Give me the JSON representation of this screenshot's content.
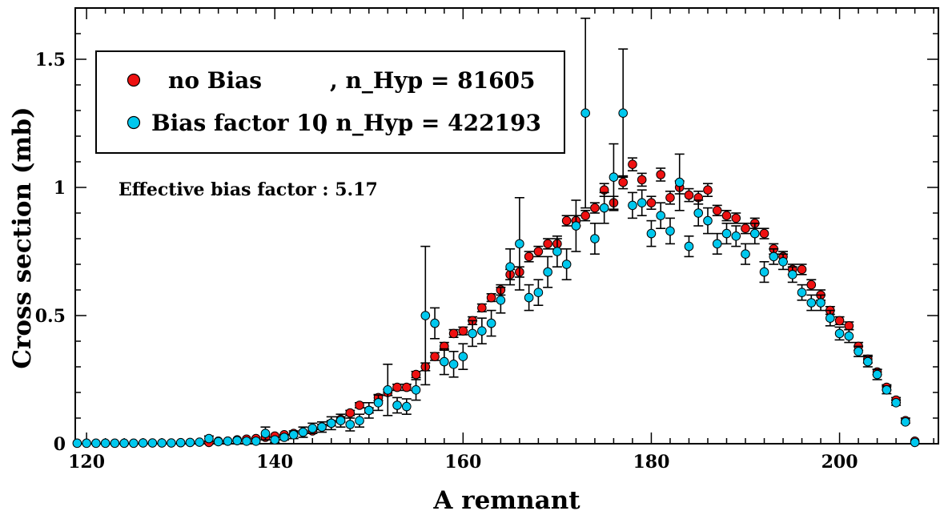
{
  "chart_data": {
    "type": "scatter",
    "title": "",
    "xlabel": "A remnant",
    "ylabel": "Cross section (mb)",
    "xlim": [
      118.8,
      210.5
    ],
    "ylim": [
      0,
      1.7
    ],
    "x_ticks": [
      120,
      140,
      160,
      180,
      200
    ],
    "x_tick_labels": [
      "120",
      "140",
      "160",
      "180",
      "200"
    ],
    "y_ticks": [
      0,
      0.5,
      1,
      1.5
    ],
    "y_tick_labels": [
      "0",
      "0.5",
      "1",
      "1.5"
    ],
    "annotation": "Effective bias factor : 5.17",
    "legend_position": "top-left",
    "series": [
      {
        "name": "no Bias",
        "legend_label": "no Bias",
        "legend_suffix": ", n_Hyp = 81605",
        "color": "#ee1111",
        "x": [
          133,
          134,
          135,
          136,
          137,
          138,
          139,
          140,
          141,
          142,
          143,
          144,
          145,
          146,
          147,
          148,
          149,
          150,
          151,
          152,
          153,
          154,
          155,
          156,
          157,
          158,
          159,
          160,
          161,
          162,
          163,
          164,
          165,
          166,
          167,
          168,
          169,
          170,
          171,
          172,
          173,
          174,
          175,
          176,
          177,
          178,
          179,
          180,
          181,
          182,
          183,
          184,
          185,
          186,
          187,
          188,
          189,
          190,
          191,
          192,
          193,
          194,
          195,
          196,
          197,
          198,
          199,
          200,
          201,
          202,
          203,
          204,
          205,
          206,
          207,
          208
        ],
        "y": [
          0.005,
          0.01,
          0.01,
          0.015,
          0.018,
          0.02,
          0.025,
          0.03,
          0.035,
          0.04,
          0.045,
          0.05,
          0.065,
          0.08,
          0.095,
          0.12,
          0.15,
          0.13,
          0.18,
          0.2,
          0.22,
          0.22,
          0.27,
          0.3,
          0.34,
          0.38,
          0.43,
          0.44,
          0.48,
          0.53,
          0.57,
          0.6,
          0.66,
          0.67,
          0.73,
          0.75,
          0.78,
          0.78,
          0.87,
          0.87,
          0.89,
          0.92,
          0.99,
          0.94,
          1.02,
          1.09,
          1.03,
          0.94,
          1.05,
          0.96,
          1.0,
          0.97,
          0.96,
          0.99,
          0.91,
          0.89,
          0.88,
          0.84,
          0.86,
          0.82,
          0.76,
          0.73,
          0.68,
          0.68,
          0.62,
          0.58,
          0.52,
          0.48,
          0.46,
          0.38,
          0.33,
          0.28,
          0.22,
          0.17,
          0.09,
          0.01
        ],
        "err": [
          0.005,
          0.005,
          0.005,
          0.005,
          0.005,
          0.005,
          0.005,
          0.005,
          0.008,
          0.008,
          0.008,
          0.01,
          0.01,
          0.01,
          0.01,
          0.01,
          0.01,
          0.01,
          0.012,
          0.012,
          0.012,
          0.012,
          0.012,
          0.015,
          0.015,
          0.015,
          0.015,
          0.015,
          0.015,
          0.015,
          0.015,
          0.02,
          0.02,
          0.02,
          0.02,
          0.02,
          0.02,
          0.02,
          0.02,
          0.02,
          0.02,
          0.02,
          0.025,
          0.025,
          0.025,
          0.025,
          0.025,
          0.025,
          0.025,
          0.025,
          0.025,
          0.025,
          0.025,
          0.025,
          0.02,
          0.02,
          0.02,
          0.02,
          0.02,
          0.02,
          0.02,
          0.02,
          0.02,
          0.02,
          0.02,
          0.02,
          0.015,
          0.015,
          0.015,
          0.015,
          0.015,
          0.01,
          0.01,
          0.01,
          0.01,
          0.005
        ]
      },
      {
        "name": "Bias factor 10",
        "legend_label": "Bias factor 10",
        "legend_suffix": ", n_Hyp = 422193",
        "color": "#00c8ee",
        "x": [
          119,
          120,
          121,
          122,
          123,
          124,
          125,
          126,
          127,
          128,
          129,
          130,
          131,
          132,
          133,
          134,
          135,
          136,
          137,
          138,
          139,
          140,
          141,
          142,
          143,
          144,
          145,
          146,
          147,
          148,
          149,
          150,
          151,
          152,
          153,
          154,
          155,
          156,
          157,
          158,
          159,
          160,
          161,
          162,
          163,
          164,
          165,
          166,
          167,
          168,
          169,
          170,
          171,
          172,
          173,
          174,
          175,
          176,
          177,
          178,
          179,
          180,
          181,
          182,
          183,
          184,
          185,
          186,
          187,
          188,
          189,
          190,
          191,
          192,
          193,
          194,
          195,
          196,
          197,
          198,
          199,
          200,
          201,
          202,
          203,
          204,
          205,
          206,
          207,
          208
        ],
        "y": [
          0.002,
          0.002,
          0.002,
          0.002,
          0.002,
          0.002,
          0.002,
          0.003,
          0.003,
          0.003,
          0.003,
          0.004,
          0.005,
          0.006,
          0.02,
          0.008,
          0.01,
          0.012,
          0.01,
          0.01,
          0.04,
          0.015,
          0.025,
          0.035,
          0.045,
          0.06,
          0.065,
          0.08,
          0.09,
          0.075,
          0.09,
          0.13,
          0.16,
          0.21,
          0.15,
          0.145,
          0.21,
          0.5,
          0.47,
          0.32,
          0.31,
          0.34,
          0.43,
          0.44,
          0.47,
          0.56,
          0.69,
          0.78,
          0.57,
          0.59,
          0.67,
          0.75,
          0.7,
          0.85,
          1.29,
          0.8,
          0.92,
          1.04,
          1.29,
          0.93,
          0.94,
          0.82,
          0.89,
          0.83,
          1.02,
          0.77,
          0.9,
          0.87,
          0.78,
          0.82,
          0.81,
          0.74,
          0.82,
          0.67,
          0.73,
          0.71,
          0.66,
          0.59,
          0.55,
          0.55,
          0.49,
          0.43,
          0.42,
          0.36,
          0.32,
          0.27,
          0.21,
          0.16,
          0.085,
          0.005
        ],
        "err": [
          0.002,
          0.002,
          0.002,
          0.002,
          0.002,
          0.002,
          0.002,
          0.002,
          0.002,
          0.002,
          0.002,
          0.003,
          0.003,
          0.003,
          0.01,
          0.005,
          0.005,
          0.005,
          0.005,
          0.005,
          0.025,
          0.01,
          0.01,
          0.015,
          0.02,
          0.02,
          0.02,
          0.025,
          0.025,
          0.025,
          0.025,
          0.03,
          0.03,
          0.1,
          0.03,
          0.03,
          0.04,
          0.27,
          0.06,
          0.05,
          0.05,
          0.05,
          0.05,
          0.05,
          0.05,
          0.05,
          0.07,
          0.18,
          0.05,
          0.05,
          0.06,
          0.06,
          0.06,
          0.1,
          0.37,
          0.06,
          0.06,
          0.13,
          0.25,
          0.05,
          0.05,
          0.05,
          0.05,
          0.05,
          0.11,
          0.04,
          0.05,
          0.05,
          0.04,
          0.04,
          0.04,
          0.04,
          0.04,
          0.04,
          0.03,
          0.03,
          0.03,
          0.03,
          0.03,
          0.03,
          0.03,
          0.025,
          0.025,
          0.02,
          0.02,
          0.02,
          0.015,
          0.01,
          0.008,
          0.005
        ]
      }
    ]
  }
}
